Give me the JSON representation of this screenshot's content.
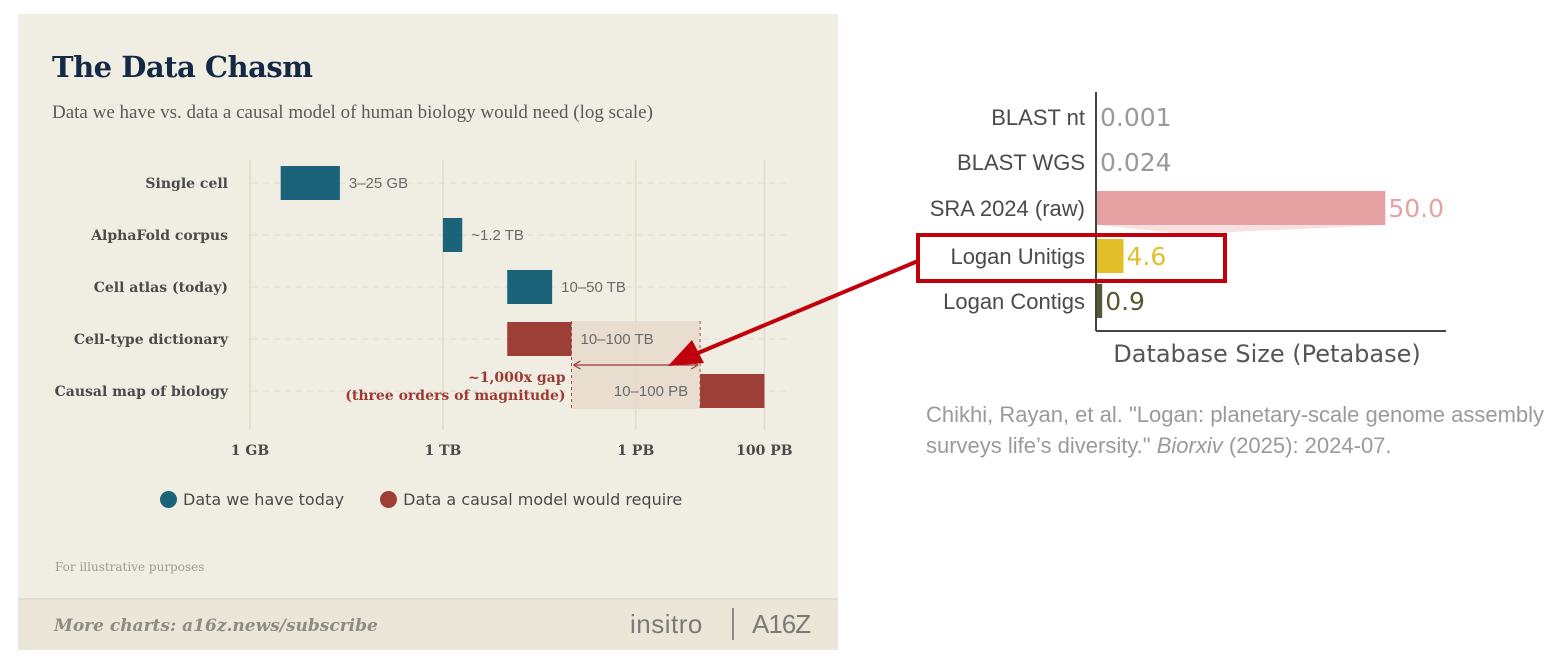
{
  "left_chart": {
    "title": "The Data Chasm",
    "subtitle": "Data we have vs. data a causal model of human biology would need (log scale)",
    "footnote": "For illustrative purposes",
    "footer": {
      "text": "More charts: a16z.news/subscribe",
      "logo_insitro": "insitro",
      "logo_a16z": "A16Z"
    },
    "legend": [
      {
        "label": "Data we have today",
        "color": "#1b6378"
      },
      {
        "label": "Data a causal model would require",
        "color": "#9e3f37"
      }
    ],
    "gap_annotation": [
      "~1,000x gap",
      "(three orders of magnitude)"
    ]
  },
  "chart_data": [
    {
      "type": "bar",
      "title": "The Data Chasm",
      "subtitle": "Data we have vs. data a causal model of human biology would need (log scale)",
      "x_scale": "log",
      "x_ticks": [
        {
          "label": "1 GB",
          "value": 1
        },
        {
          "label": "1 TB",
          "value": 1000
        },
        {
          "label": "1 PB",
          "value": 1000000
        },
        {
          "label": "100 PB",
          "value": 100000000
        }
      ],
      "x_unit": "GB",
      "grid": true,
      "legend_position": "bottom",
      "categories": [
        "Single cell",
        "AlphaFold corpus",
        "Cell atlas (today)",
        "Cell-type dictionary",
        "Causal map of biology"
      ],
      "series": [
        {
          "name": "Data we have today",
          "color": "#1b6378",
          "ranges": [
            {
              "category": "Single cell",
              "low": 3,
              "high": 25,
              "label": "3–25 GB"
            },
            {
              "category": "AlphaFold corpus",
              "low": 1000,
              "high": 2000,
              "label": "~1.2 TB"
            },
            {
              "category": "Cell atlas (today)",
              "low": 10000,
              "high": 50000,
              "label": "10–50 TB"
            }
          ]
        },
        {
          "name": "Data a causal model would require",
          "color": "#9e3f37",
          "ranges": [
            {
              "category": "Cell-type dictionary",
              "low": 10000,
              "high": 100000,
              "label": "10–100 TB"
            },
            {
              "category": "Causal map of biology",
              "low": 10000000,
              "high": 100000000,
              "label": "10–100 PB"
            }
          ]
        }
      ],
      "shaded_regions": [
        {
          "category": "Cell-type dictionary",
          "low": 100000,
          "high": 10000000
        },
        {
          "category": "Causal map of biology",
          "low": 100000,
          "high": 10000000
        }
      ],
      "annotations": [
        "~1,000x gap",
        "(three orders of magnitude)"
      ]
    },
    {
      "type": "bar",
      "orientation": "horizontal",
      "xlabel": "Database Size (Petabase)",
      "categories": [
        "BLAST nt",
        "BLAST WGS",
        "SRA 2024 (raw)",
        "Logan Unitigs",
        "Logan Contigs"
      ],
      "values": [
        0.001,
        0.024,
        50.0,
        4.6,
        0.9
      ],
      "value_labels": [
        "0.001",
        "0.024",
        "50.0",
        "4.6",
        "0.9"
      ],
      "colors": [
        "#999999",
        "#999999",
        "#e6a1a2",
        "#e3c02a",
        "#5a5832"
      ],
      "label_colors": [
        "#999999",
        "#999999",
        "#e6a1a2",
        "#e3c02a",
        "#5a5832"
      ],
      "xlim": [
        0,
        60
      ],
      "highlight": {
        "category": "Logan Unitigs",
        "color": "#c0000b"
      }
    }
  ],
  "citation": {
    "before_italic": "Chikhi, Rayan, et al. \"Logan: planetary-scale genome assembly surveys life’s diversity.\" ",
    "italic": "Biorxiv",
    "after_italic": " (2025): 2024-07."
  }
}
